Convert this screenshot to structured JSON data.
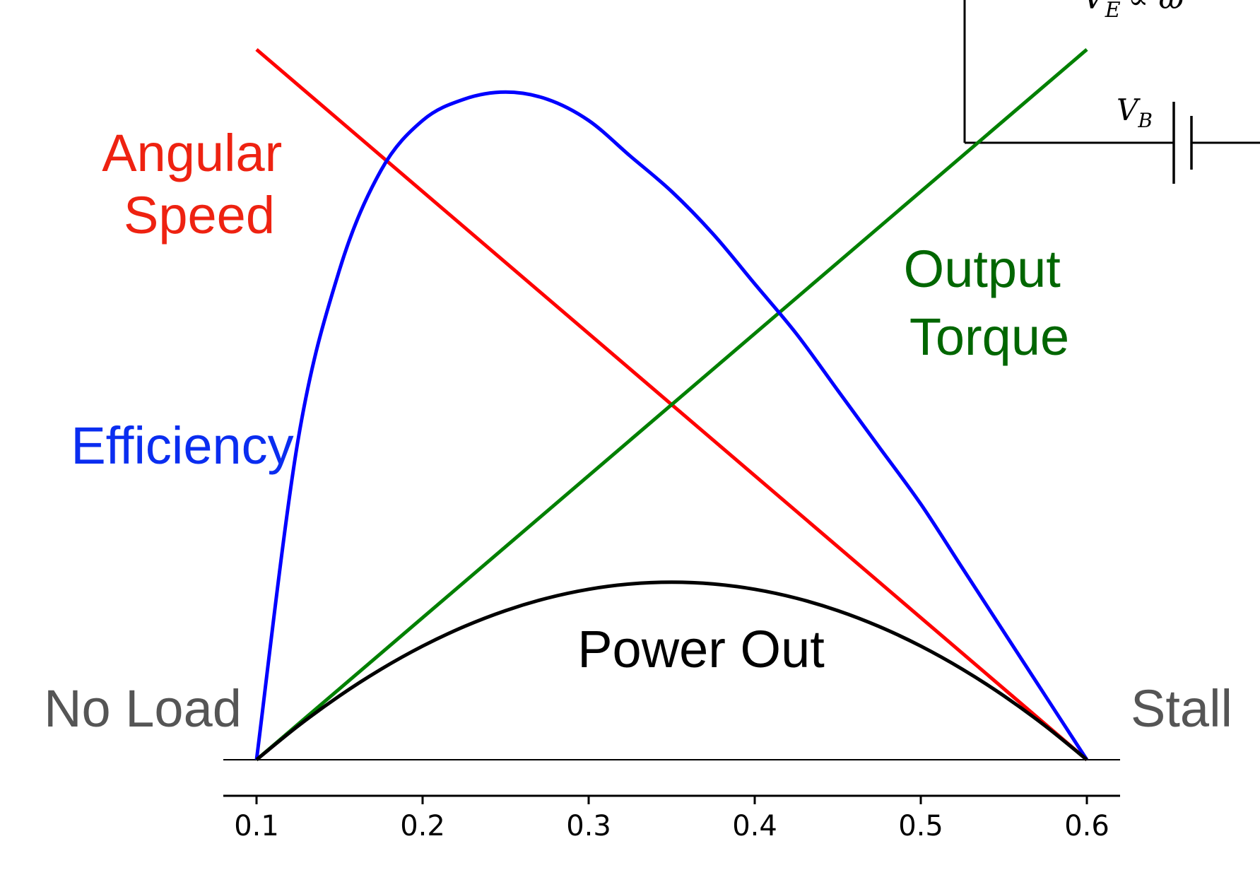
{
  "chart_data": {
    "type": "line",
    "title": "",
    "xlabel": "",
    "ylabel": "",
    "xlim": [
      0.08,
      0.62
    ],
    "ylim": [
      0,
      1
    ],
    "grid": false,
    "x_ticks": [
      {
        "value": 0.1,
        "label": "0.1"
      },
      {
        "value": 0.2,
        "label": "0.2"
      },
      {
        "value": 0.3,
        "label": "0.3"
      },
      {
        "value": 0.4,
        "label": "0.4"
      },
      {
        "value": 0.5,
        "label": "0.5"
      },
      {
        "value": 0.6,
        "label": "0.6"
      }
    ],
    "series": [
      {
        "name": "",
        "color": "#ff0000",
        "x": [
          0.1,
          0.6
        ],
        "y": [
          1.0,
          0.0
        ]
      },
      {
        "name": "",
        "color": "#008000",
        "x": [
          0.1,
          0.6
        ],
        "y": [
          0.0,
          1.0
        ]
      },
      {
        "name": "",
        "color": "#0000ff",
        "x": [
          0.1,
          0.125,
          0.15,
          0.175,
          0.2,
          0.225,
          0.25,
          0.275,
          0.3,
          0.325,
          0.35,
          0.375,
          0.4,
          0.425,
          0.45,
          0.475,
          0.5,
          0.525,
          0.55,
          0.575,
          0.6
        ],
        "y": [
          0.0,
          0.45,
          0.69,
          0.83,
          0.9,
          0.93,
          0.94,
          0.93,
          0.9,
          0.85,
          0.8,
          0.74,
          0.67,
          0.6,
          0.52,
          0.44,
          0.36,
          0.27,
          0.18,
          0.09,
          0.0
        ]
      },
      {
        "name": "",
        "color": "#000000",
        "x": [
          0.1,
          0.125,
          0.15,
          0.175,
          0.2,
          0.225,
          0.25,
          0.275,
          0.3,
          0.325,
          0.35,
          0.375,
          0.4,
          0.425,
          0.45,
          0.475,
          0.5,
          0.525,
          0.55,
          0.575,
          0.6
        ],
        "y": [
          0.0,
          0.0475,
          0.09,
          0.1275,
          0.16,
          0.1875,
          0.21,
          0.2275,
          0.24,
          0.2475,
          0.25,
          0.2475,
          0.24,
          0.2275,
          0.21,
          0.1875,
          0.16,
          0.1275,
          0.09,
          0.0475,
          0.0
        ]
      }
    ],
    "annotations": [
      {
        "lines": [
          "Angular",
          "Speed"
        ],
        "color": "#ee2211"
      },
      {
        "lines": [
          "Output",
          "Torque"
        ],
        "color": "#006600"
      },
      {
        "lines": [
          "Efficiency"
        ],
        "color": "#0a2df0"
      },
      {
        "lines": [
          "Power Out"
        ],
        "color": "#000000"
      },
      {
        "lines": [
          "No Load"
        ],
        "color": "#555555"
      },
      {
        "lines": [
          "Stall"
        ],
        "color": "#555555"
      }
    ]
  },
  "circuit": {
    "emf_label": "V",
    "emf_subscript": "E",
    "emf_relation": "∝ ω",
    "battery_label": "V",
    "battery_subscript": "B"
  }
}
